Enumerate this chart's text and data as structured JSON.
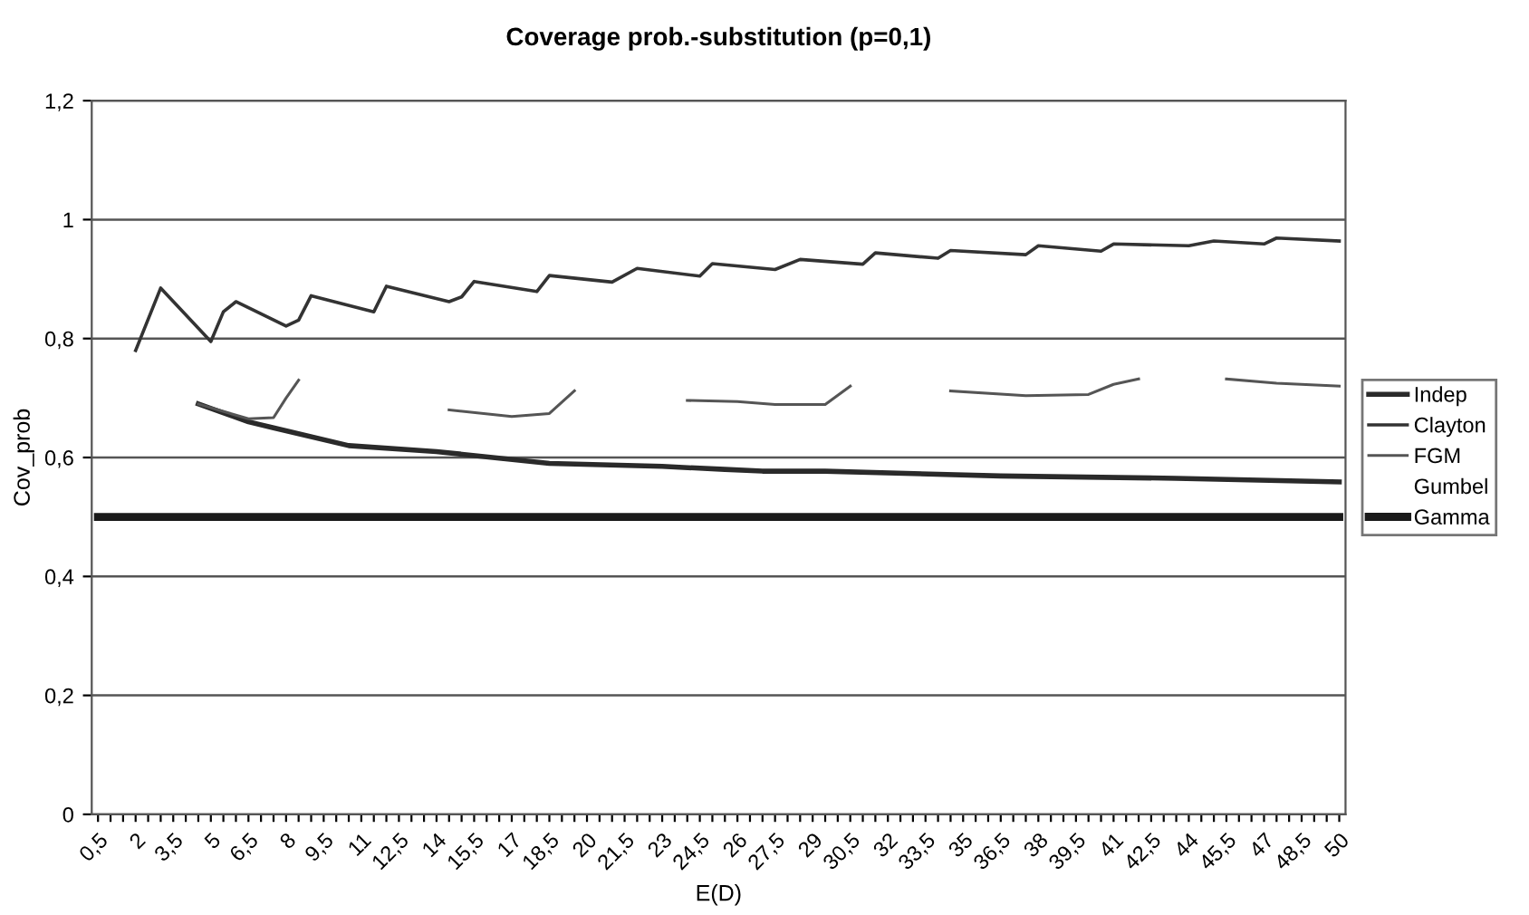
{
  "chart_data": {
    "type": "line",
    "title": "Coverage prob.-substitution (p=0,1)",
    "xlabel": "E(D)",
    "ylabel": "Cov_prob",
    "xlim": [
      0.25,
      50.25
    ],
    "ylim": [
      0,
      1.2
    ],
    "yticks": [
      0,
      {
        "value": 0.2,
        "label": "0,2"
      },
      {
        "value": 0.4,
        "label": "0,4"
      },
      {
        "value": 0.6,
        "label": "0,6"
      },
      {
        "value": 0.8,
        "label": "0,8"
      },
      1,
      {
        "value": 1.2,
        "label": "1,2"
      }
    ],
    "xticks": [
      {
        "value": 0.5,
        "label": "0,5"
      },
      {
        "value": 1,
        "label": null
      },
      {
        "value": 1.5,
        "label": null
      },
      2,
      {
        "value": 2.5,
        "label": null
      },
      {
        "value": 3,
        "label": null
      },
      {
        "value": 3.5,
        "label": "3,5"
      },
      {
        "value": 4,
        "label": null
      },
      {
        "value": 4.5,
        "label": null
      },
      5,
      {
        "value": 5.5,
        "label": null
      },
      {
        "value": 6,
        "label": null
      },
      {
        "value": 6.5,
        "label": "6,5"
      },
      {
        "value": 7,
        "label": null
      },
      {
        "value": 7.5,
        "label": null
      },
      8,
      {
        "value": 8.5,
        "label": null
      },
      {
        "value": 9,
        "label": null
      },
      {
        "value": 9.5,
        "label": "9,5"
      },
      {
        "value": 10,
        "label": null
      },
      {
        "value": 10.5,
        "label": null
      },
      11,
      {
        "value": 11.5,
        "label": null
      },
      {
        "value": 12,
        "label": null
      },
      {
        "value": 12.5,
        "label": "12,5"
      },
      {
        "value": 13,
        "label": null
      },
      {
        "value": 13.5,
        "label": null
      },
      14,
      {
        "value": 14.5,
        "label": null
      },
      {
        "value": 15,
        "label": null
      },
      {
        "value": 15.5,
        "label": "15,5"
      },
      {
        "value": 16,
        "label": null
      },
      {
        "value": 16.5,
        "label": null
      },
      17,
      {
        "value": 17.5,
        "label": null
      },
      {
        "value": 18,
        "label": null
      },
      {
        "value": 18.5,
        "label": "18,5"
      },
      {
        "value": 19,
        "label": null
      },
      {
        "value": 19.5,
        "label": null
      },
      20,
      {
        "value": 20.5,
        "label": null
      },
      {
        "value": 21,
        "label": null
      },
      {
        "value": 21.5,
        "label": "21,5"
      },
      {
        "value": 22,
        "label": null
      },
      {
        "value": 22.5,
        "label": null
      },
      23,
      {
        "value": 23.5,
        "label": null
      },
      {
        "value": 24,
        "label": null
      },
      {
        "value": 24.5,
        "label": "24,5"
      },
      {
        "value": 25,
        "label": null
      },
      {
        "value": 25.5,
        "label": null
      },
      26,
      {
        "value": 26.5,
        "label": null
      },
      {
        "value": 27,
        "label": null
      },
      {
        "value": 27.5,
        "label": "27,5"
      },
      {
        "value": 28,
        "label": null
      },
      {
        "value": 28.5,
        "label": null
      },
      29,
      {
        "value": 29.5,
        "label": null
      },
      {
        "value": 30,
        "label": null
      },
      {
        "value": 30.5,
        "label": "30,5"
      },
      {
        "value": 31,
        "label": null
      },
      {
        "value": 31.5,
        "label": null
      },
      32,
      {
        "value": 32.5,
        "label": null
      },
      {
        "value": 33,
        "label": null
      },
      {
        "value": 33.5,
        "label": "33,5"
      },
      {
        "value": 34,
        "label": null
      },
      {
        "value": 34.5,
        "label": null
      },
      35,
      {
        "value": 35.5,
        "label": null
      },
      {
        "value": 36,
        "label": null
      },
      {
        "value": 36.5,
        "label": "36,5"
      },
      {
        "value": 37,
        "label": null
      },
      {
        "value": 37.5,
        "label": null
      },
      38,
      {
        "value": 38.5,
        "label": null
      },
      {
        "value": 39,
        "label": null
      },
      {
        "value": 39.5,
        "label": "39,5"
      },
      {
        "value": 40,
        "label": null
      },
      {
        "value": 40.5,
        "label": null
      },
      41,
      {
        "value": 41.5,
        "label": null
      },
      {
        "value": 42,
        "label": null
      },
      {
        "value": 42.5,
        "label": "42,5"
      },
      {
        "value": 43,
        "label": null
      },
      {
        "value": 43.5,
        "label": null
      },
      44,
      {
        "value": 44.5,
        "label": null
      },
      {
        "value": 45,
        "label": null
      },
      {
        "value": 45.5,
        "label": "45,5"
      },
      {
        "value": 46,
        "label": null
      },
      {
        "value": 46.5,
        "label": null
      },
      47,
      {
        "value": 47.5,
        "label": null
      },
      {
        "value": 48,
        "label": null
      },
      {
        "value": 48.5,
        "label": "48,5"
      },
      {
        "value": 49,
        "label": null
      },
      {
        "value": 49.5,
        "label": null
      },
      50
    ],
    "grid": "y",
    "legend": "right",
    "marker": "none",
    "line_style": "solid",
    "series": [
      {
        "name": "Indep",
        "color": "#2a2a2a",
        "x": [
          4.5,
          6.5,
          7.5,
          10.5,
          14,
          18.5,
          23,
          25.5,
          27,
          29.5,
          36.5,
          43.5,
          50
        ],
        "values": [
          0.69,
          0.66,
          0.65,
          0.62,
          0.61,
          0.59,
          0.585,
          0.58,
          0.577,
          0.577,
          0.569,
          0.565,
          0.559
        ]
      },
      {
        "name": "Clayton",
        "color": "#333333",
        "x": [
          2,
          3,
          5,
          5.5,
          6,
          8,
          8.5,
          9,
          11.5,
          12,
          14.5,
          15,
          15.5,
          18,
          18.5,
          21,
          22,
          24.5,
          25,
          27.5,
          28.5,
          31,
          31.5,
          34,
          34.5,
          37.5,
          38,
          40.5,
          41,
          44,
          45,
          47,
          47.5,
          50
        ],
        "values": [
          0.78,
          0.885,
          0.795,
          0.845,
          0.862,
          0.821,
          0.831,
          0.872,
          0.845,
          0.888,
          0.862,
          0.87,
          0.896,
          0.879,
          0.906,
          0.895,
          0.918,
          0.905,
          0.926,
          0.916,
          0.933,
          0.925,
          0.944,
          0.935,
          0.948,
          0.941,
          0.956,
          0.947,
          0.959,
          0.956,
          0.964,
          0.959,
          0.969,
          0.964
        ]
      },
      {
        "name": "FGM",
        "color": "#555555",
        "x": [
          4.5,
          6.5,
          7.5,
          8,
          8.5,
          9,
          14.5,
          17,
          18.5,
          19.5,
          20,
          24,
          26,
          27.5,
          29.5,
          30.5,
          31,
          34.5,
          37.5,
          40,
          41,
          42,
          43,
          45.5,
          47.5,
          50
        ],
        "values": [
          0.69,
          0.665,
          0.667,
          0.7,
          0.73,
          null,
          0.68,
          0.669,
          0.674,
          0.712,
          null,
          0.696,
          0.694,
          0.689,
          0.689,
          0.72,
          null,
          0.712,
          0.704,
          0.706,
          0.723,
          0.732,
          null,
          0.732,
          0.725,
          0.72
        ]
      },
      {
        "name": "Gumbel"
      },
      {
        "name": "Gamma",
        "color": "#1a1a1a",
        "x": [
          0.5,
          50
        ],
        "values": [
          0.5,
          0.5
        ]
      }
    ]
  }
}
